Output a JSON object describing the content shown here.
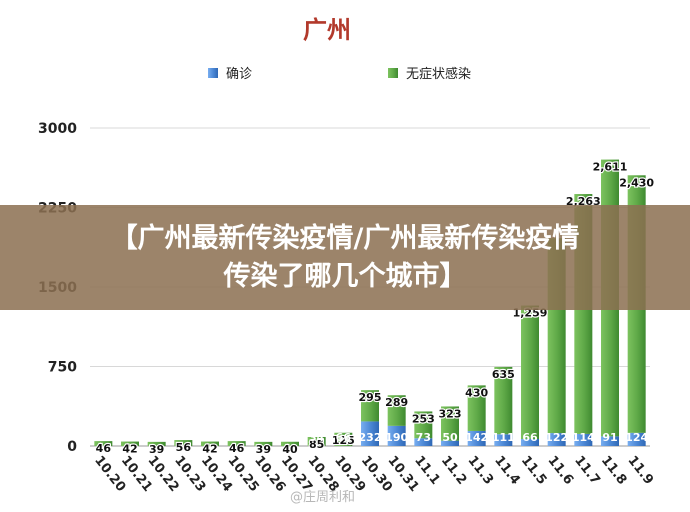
{
  "chart_data": {
    "type": "bar",
    "stacked": true,
    "title": "广州",
    "categories": [
      "10.20",
      "10.21",
      "10.22",
      "10.23",
      "10.24",
      "10.25",
      "10.26",
      "10.27",
      "10.28",
      "10.29",
      "10.30",
      "10.31",
      "11.1",
      "11.2",
      "11.3",
      "11.4",
      "11.5",
      "11.6",
      "11.7",
      "11.8",
      "11.9"
    ],
    "series": [
      {
        "name": "确诊",
        "color": "#4a86d4",
        "values": [
          0,
          0,
          0,
          0,
          0,
          0,
          0,
          0,
          0,
          0,
          232,
          190,
          73,
          50,
          142,
          111,
          66,
          122,
          114,
          91,
          124
        ],
        "labels": [
          "",
          "",
          "",
          "",
          "",
          "",
          "",
          "",
          "",
          "",
          "232",
          "190",
          "73",
          "50",
          "142",
          "111",
          "66",
          "122",
          "114",
          "91",
          "124"
        ]
      },
      {
        "name": "无症状感染",
        "color": "#5ea847",
        "values": [
          46,
          42,
          39,
          56,
          42,
          46,
          39,
          40,
          85,
          125,
          295,
          289,
          253,
          323,
          430,
          635,
          1259,
          1838,
          2263,
          2611,
          2430
        ],
        "labels": [
          "46",
          "42",
          "39",
          "56",
          "42",
          "46",
          "39",
          "40",
          "85",
          "125",
          "295",
          "289",
          "253",
          "323",
          "430",
          "635",
          "1,259",
          "",
          "2,263",
          "2,611",
          "2,430"
        ]
      }
    ],
    "bottom_labels": [
      "",
      "",
      "",
      "",
      "",
      "",
      "",
      "",
      "34",
      "66",
      "",
      "",
      "",
      "",
      "",
      "",
      "",
      "",
      "",
      "",
      ""
    ],
    "yticks": [
      "0",
      "750",
      "1500",
      "2250",
      "3000"
    ],
    "ylim": [
      0,
      3000
    ],
    "legend_position": "top",
    "grid": true
  },
  "banner": {
    "line1": "【广州最新传染疫情/广州最新传染疫情",
    "line2": "传染了哪几个城市】"
  },
  "watermark": "@庄周利和"
}
